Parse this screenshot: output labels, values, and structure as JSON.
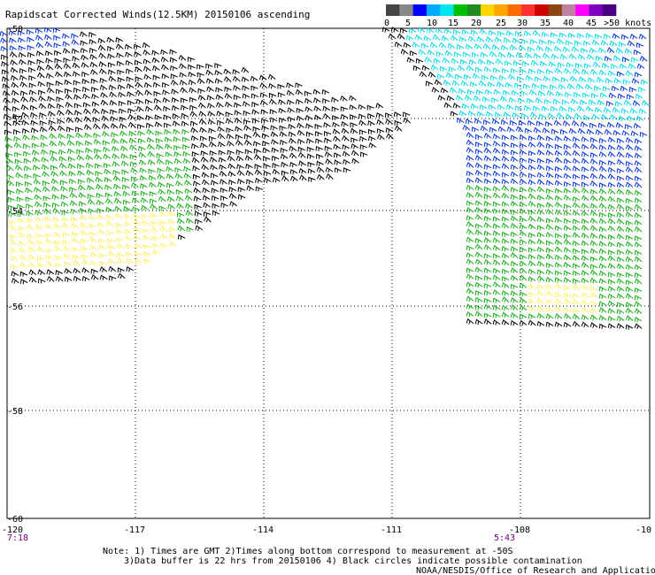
{
  "title": "Rapidscat Corrected Winds(12.5KM) 20150106 ascending",
  "legend": {
    "colors": [
      "#444444",
      "#888888",
      "#0000ff",
      "#00aaff",
      "#00e5ee",
      "#00c000",
      "#228b22",
      "#ffd700",
      "#ffa500",
      "#ff6a00",
      "#ff3030",
      "#cc0000",
      "#8b4513",
      "#c080a0",
      "#ff00ff",
      "#8000c0",
      "#4b0082"
    ],
    "labels": [
      "0",
      "5",
      "10",
      "15",
      "20",
      "25",
      "30",
      "35",
      "40",
      "45",
      ">50 knots"
    ]
  },
  "lat_labels": [
    "-50",
    "-52",
    "-54",
    "-56",
    "-58",
    "-60"
  ],
  "lon_labels": [
    "-120",
    "-117",
    "-114",
    "-111",
    "-108",
    "-10"
  ],
  "time_labels": {
    "left": "7:18",
    "right": "5:43"
  },
  "notes": {
    "line1": "Note: 1) Times are GMT 2)Times along bottom correspond to measurement at -50S",
    "line2": "3)Data buffer is 22 hrs from 20150106 4) Black circles indicate possible contamination",
    "credit": "NOAA/NESDIS/Office of Research and Applications"
  },
  "wind_colors": {
    "calm": "#000000",
    "light": "#00d8e8",
    "moderate": "#0030e0",
    "fresh": "#10b010",
    "strong": "#ffee60"
  }
}
